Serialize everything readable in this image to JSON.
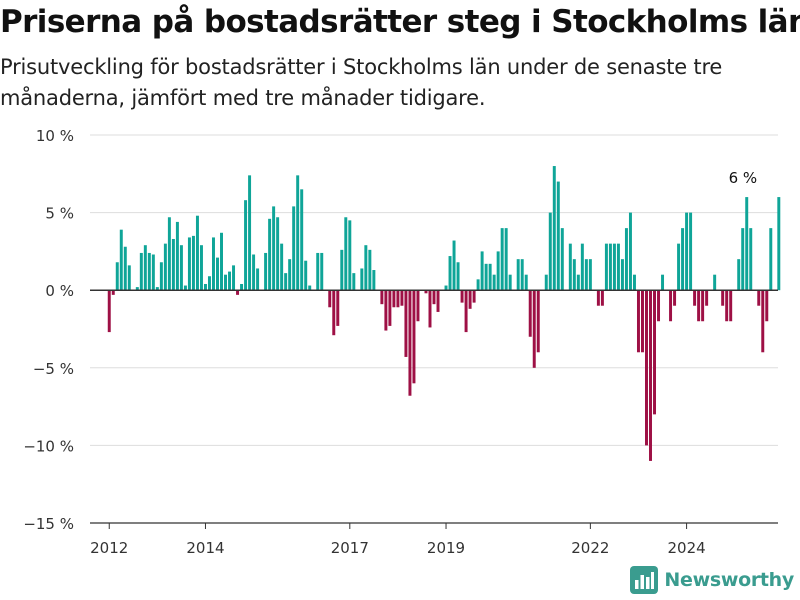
{
  "title": "Priserna på bostadsrätter steg i Stockholms län",
  "subtitle": "Prisutveckling för bostadsrätter i Stockholms län under de senaste tre månaderna, jämfört med tre månader tidigare.",
  "brand": {
    "name": "Newsworthy",
    "icon": "bar-chart-logo-icon"
  },
  "colors": {
    "positive": "#0fa598",
    "negative": "#9e1045",
    "grid": "#dddddd",
    "zero_line": "#333333",
    "text": "#333333"
  },
  "chart_data": {
    "type": "bar",
    "ylim": [
      -15,
      10
    ],
    "y_ticks": [
      10,
      5,
      0,
      -5,
      -10,
      -15
    ],
    "y_tick_labels": [
      "10 %",
      "5 %",
      "0 %",
      "−5 %",
      "−10 %",
      "−15 %"
    ],
    "x_ticks": [
      2012,
      2014,
      2017,
      2019,
      2022,
      2024
    ],
    "x_tick_labels": [
      "2012",
      "2014",
      "2017",
      "2019",
      "2022",
      "2024"
    ],
    "x_range_years": [
      2011.6,
      2025.9
    ],
    "grid": true,
    "annotations": [
      {
        "x": 2025.17,
        "y": 6,
        "text": "6 %"
      }
    ],
    "x_start": "2012-01",
    "values": [
      -2.7,
      -0.3,
      1.8,
      3.9,
      2.8,
      1.6,
      0,
      0.2,
      2.4,
      2.9,
      2.4,
      2.3,
      0.2,
      1.8,
      3.0,
      4.7,
      3.3,
      4.4,
      2.9,
      0.3,
      3.4,
      3.5,
      4.8,
      2.9,
      0.4,
      0.9,
      3.4,
      2.1,
      3.7,
      1.0,
      1.2,
      1.6,
      -0.3,
      0.4,
      5.8,
      7.4,
      2.3,
      1.4,
      0,
      2.4,
      4.6,
      5.4,
      4.7,
      3.0,
      1.1,
      2.0,
      5.4,
      7.4,
      6.5,
      1.9,
      0.3,
      0,
      2.4,
      2.4,
      0,
      -1.1,
      -2.9,
      -2.3,
      2.6,
      4.7,
      4.5,
      1.1,
      0,
      1.4,
      2.9,
      2.6,
      1.3,
      0,
      -0.9,
      -2.6,
      -2.3,
      -1.1,
      -1.1,
      -1.0,
      -4.3,
      -6.8,
      -6.0,
      -2.0,
      0,
      -0.2,
      -2.4,
      -0.9,
      -1.4,
      0,
      0.3,
      2.2,
      3.2,
      1.8,
      -0.8,
      -2.7,
      -1.2,
      -0.8,
      0.7,
      2.5,
      1.7,
      1.7,
      1.0,
      2.5,
      4.0,
      4.0,
      1.0,
      0,
      2.0,
      2.0,
      1.0,
      -3.0,
      -5.0,
      -4.0,
      0,
      1.0,
      5.0,
      8.0,
      7.0,
      4.0,
      0,
      3.0,
      2.0,
      1.0,
      3.0,
      2.0,
      2.0,
      0,
      -1.0,
      -1.0,
      3.0,
      3.0,
      3.0,
      3.0,
      2.0,
      4.0,
      5.0,
      1.0,
      -4.0,
      -4.0,
      -10.0,
      -11.0,
      -8.0,
      -2.0,
      1.0,
      0,
      -2.0,
      -1.0,
      3.0,
      4.0,
      5.0,
      5.0,
      -1.0,
      -2.0,
      -2.0,
      -1.0,
      0,
      1.0,
      0,
      -1.0,
      -2.0,
      -2.0,
      0,
      2.0,
      4.0,
      6.0,
      4.0,
      0,
      -1.0,
      -4.0,
      -2.0,
      4.0,
      0,
      6.0
    ]
  }
}
